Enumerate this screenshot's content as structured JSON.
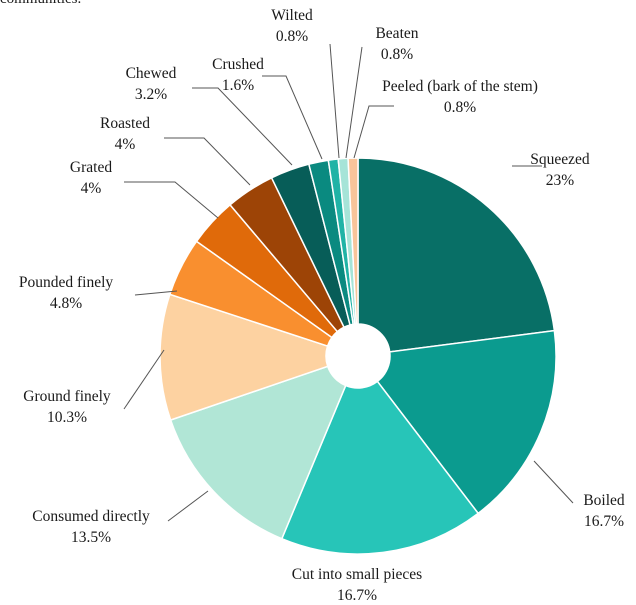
{
  "header_fragment": "communities.",
  "chart_data": {
    "type": "pie",
    "donut": true,
    "title": "",
    "legend": "none",
    "slices": [
      {
        "label": "Squeezed",
        "value": 23,
        "display": "23%",
        "color": "#086f66"
      },
      {
        "label": "Boiled",
        "value": 16.7,
        "display": "16.7%",
        "color": "#0b9b8f"
      },
      {
        "label": "Cut into small pieces",
        "value": 16.7,
        "display": "16.7%",
        "color": "#27c5b8"
      },
      {
        "label": "Consumed directly",
        "value": 13.5,
        "display": "13.5%",
        "color": "#b1e6d6"
      },
      {
        "label": "Ground finely",
        "value": 10.3,
        "display": "10.3%",
        "color": "#fdd2a1"
      },
      {
        "label": "Pounded finely",
        "value": 4.8,
        "display": "4.8%",
        "color": "#f98f2f"
      },
      {
        "label": "Grated",
        "value": 4,
        "display": "4%",
        "color": "#e06a0a"
      },
      {
        "label": "Roasted",
        "value": 4,
        "display": "4%",
        "color": "#9d4406"
      },
      {
        "label": "Chewed",
        "value": 3.2,
        "display": "3.2%",
        "color": "#075d58"
      },
      {
        "label": "Crushed",
        "value": 1.6,
        "display": "1.6%",
        "color": "#0a8a80"
      },
      {
        "label": "Wilted",
        "value": 0.8,
        "display": "0.8%",
        "color": "#20b3a6"
      },
      {
        "label": "Beaten",
        "value": 0.8,
        "display": "0.8%",
        "color": "#a6e4d8"
      },
      {
        "label": "Peeled (bark of the stem)",
        "value": 0.8,
        "display": "0.8%",
        "color": "#f8c49a"
      }
    ]
  }
}
